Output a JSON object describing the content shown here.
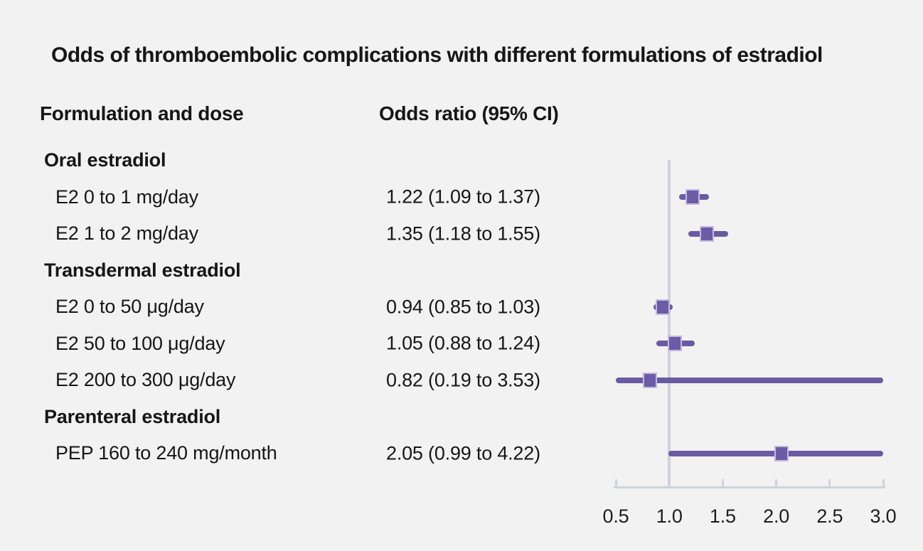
{
  "title": "Odds of thromboembolic complications with different formulations of estradiol",
  "columns": {
    "formulation": "Formulation and dose",
    "odds": "Odds ratio (95% CI)"
  },
  "colors": {
    "background": "#f2f2f2",
    "text": "#161616",
    "grid": "#cdd3dc",
    "ci_line": "#695aa4",
    "marker_fill": "#6a5ca6",
    "marker_border": "#c3badf"
  },
  "chart_data": {
    "type": "forest",
    "title": "Odds of thromboembolic complications with different formulations of estradiol",
    "xlabel": "",
    "ylabel": "",
    "axis": {
      "min": 0.5,
      "max": 3.0,
      "reference": 1.0,
      "ticks": [
        0.5,
        1.0,
        1.5,
        2.0,
        2.5,
        3.0
      ],
      "tick_labels": [
        "0.5",
        "1.0",
        "1.5",
        "2.0",
        "2.5",
        "3.0"
      ]
    },
    "rows": [
      {
        "kind": "group",
        "label": "Oral estradiol"
      },
      {
        "kind": "item",
        "label": "E2 0 to 1 mg/day",
        "value_text": "1.22 (1.09 to 1.37)",
        "or": 1.22,
        "lo": 1.09,
        "hi": 1.37
      },
      {
        "kind": "item",
        "label": "E2 1 to 2 mg/day",
        "value_text": "1.35 (1.18 to 1.55)",
        "or": 1.35,
        "lo": 1.18,
        "hi": 1.55
      },
      {
        "kind": "group",
        "label": "Transdermal estradiol"
      },
      {
        "kind": "item",
        "label": "E2 0 to 50 μg/day",
        "value_text": "0.94 (0.85 to 1.03)",
        "or": 0.94,
        "lo": 0.85,
        "hi": 1.03
      },
      {
        "kind": "item",
        "label": "E2 50 to 100 μg/day",
        "value_text": "1.05 (0.88 to 1.24)",
        "or": 1.05,
        "lo": 0.88,
        "hi": 1.24
      },
      {
        "kind": "item",
        "label": "E2 200 to 300 μg/day",
        "value_text": "0.82 (0.19 to 3.53)",
        "or": 0.82,
        "lo": 0.19,
        "hi": 3.53
      },
      {
        "kind": "group",
        "label": "Parenteral estradiol"
      },
      {
        "kind": "item",
        "label": "PEP 160 to 240 mg/month",
        "value_text": "2.05 (0.99 to 4.22)",
        "or": 2.05,
        "lo": 0.99,
        "hi": 4.22
      }
    ]
  }
}
